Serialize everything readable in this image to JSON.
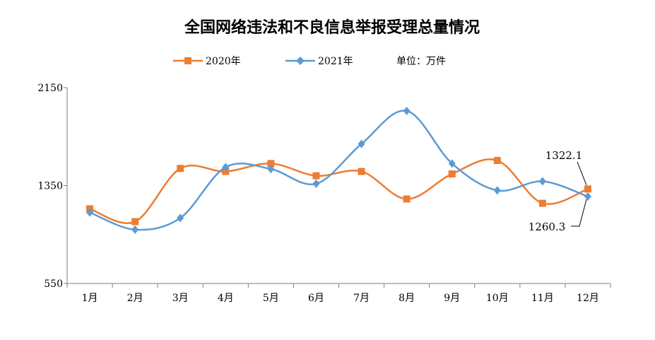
{
  "chart_data": {
    "type": "line",
    "title": "全国网络违法和不良信息举报受理总量情况",
    "unit_label": "单位：万件",
    "categories": [
      "1月",
      "2月",
      "3月",
      "4月",
      "5月",
      "6月",
      "7月",
      "8月",
      "9月",
      "10月",
      "11月",
      "12月"
    ],
    "y_ticks": [
      "550",
      "1350",
      "2150"
    ],
    "ylim": [
      550,
      2150
    ],
    "grid": false,
    "smooth": true,
    "legend_placement": "top",
    "series": [
      {
        "name": "2020年",
        "color": "#ED7D31",
        "marker": "square",
        "values": [
          1160,
          1055,
          1490,
          1465,
          1530,
          1430,
          1465,
          1240,
          1445,
          1555,
          1205,
          1322.1
        ]
      },
      {
        "name": "2021年",
        "color": "#5B9BD5",
        "marker": "diamond",
        "values": [
          1130,
          990,
          1085,
          1500,
          1485,
          1365,
          1690,
          1960,
          1530,
          1310,
          1385,
          1260.3
        ]
      }
    ],
    "annotations": [
      "1322.1",
      "1260.3"
    ]
  }
}
